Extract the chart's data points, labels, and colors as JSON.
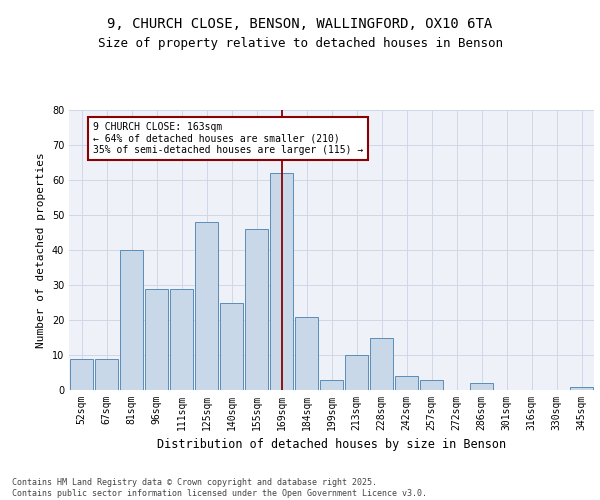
{
  "title1": "9, CHURCH CLOSE, BENSON, WALLINGFORD, OX10 6TA",
  "title2": "Size of property relative to detached houses in Benson",
  "xlabel": "Distribution of detached houses by size in Benson",
  "ylabel": "Number of detached properties",
  "categories": [
    "52sqm",
    "67sqm",
    "81sqm",
    "96sqm",
    "111sqm",
    "125sqm",
    "140sqm",
    "155sqm",
    "169sqm",
    "184sqm",
    "199sqm",
    "213sqm",
    "228sqm",
    "242sqm",
    "257sqm",
    "272sqm",
    "286sqm",
    "301sqm",
    "316sqm",
    "330sqm",
    "345sqm"
  ],
  "values": [
    9,
    9,
    40,
    29,
    29,
    48,
    25,
    46,
    62,
    21,
    3,
    10,
    15,
    4,
    3,
    0,
    2,
    0,
    0,
    0,
    1
  ],
  "bar_color": "#c8d8e8",
  "bar_edge_color": "#5b8db8",
  "grid_color": "#d0d8e8",
  "bg_color": "#eef2f8",
  "vline_color": "#8b0000",
  "annotation_text": "9 CHURCH CLOSE: 163sqm\n← 64% of detached houses are smaller (210)\n35% of semi-detached houses are larger (115) →",
  "annotation_box_color": "#8b0000",
  "ylim": [
    0,
    80
  ],
  "yticks": [
    0,
    10,
    20,
    30,
    40,
    50,
    60,
    70,
    80
  ],
  "footer": "Contains HM Land Registry data © Crown copyright and database right 2025.\nContains public sector information licensed under the Open Government Licence v3.0.",
  "title_fontsize": 10,
  "subtitle_fontsize": 9,
  "tick_fontsize": 7,
  "ylabel_fontsize": 8,
  "xlabel_fontsize": 8.5,
  "footer_fontsize": 6
}
